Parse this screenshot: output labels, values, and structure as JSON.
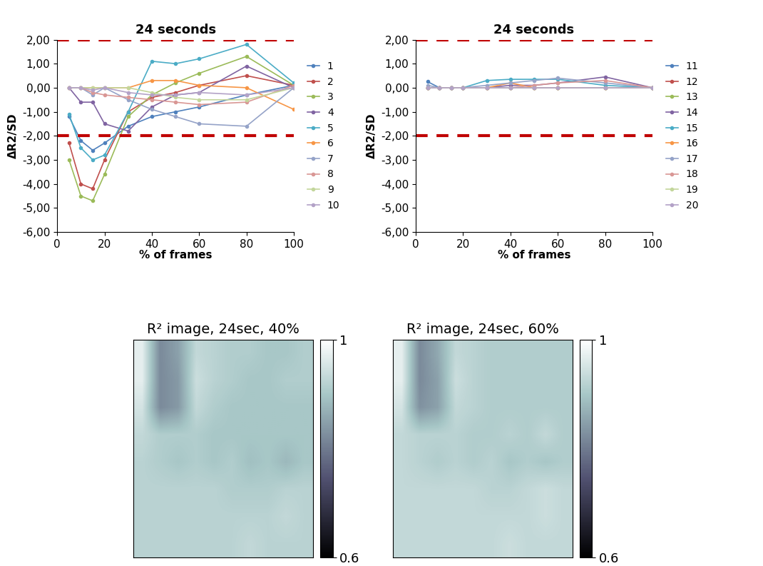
{
  "chart_data": [
    {
      "type": "line",
      "title": "24 seconds",
      "x_label": "% of frames",
      "y_label": "ΔR2/SD",
      "x": [
        5,
        10,
        15,
        20,
        30,
        40,
        50,
        60,
        80,
        100
      ],
      "xlim": [
        0,
        100
      ],
      "xticks": [
        0,
        20,
        40,
        60,
        80,
        100
      ],
      "ylim": [
        -6,
        2
      ],
      "yticks": [
        {
          "value": -6,
          "label": "-6,00"
        },
        {
          "value": -5,
          "label": "-5,00"
        },
        {
          "value": -4,
          "label": "-4,00"
        },
        {
          "value": -3,
          "label": "-3,00"
        },
        {
          "value": -2,
          "label": "-2,00"
        },
        {
          "value": -1,
          "label": "-1,00"
        },
        {
          "value": 0,
          "label": "0,00"
        },
        {
          "value": 1,
          "label": "1,00"
        },
        {
          "value": 2,
          "label": "2,00"
        }
      ],
      "thresholds": [
        2,
        -2
      ],
      "legend": "right",
      "grid": false,
      "marker": "o",
      "series": [
        {
          "name": "1",
          "color": "#4F81BD",
          "values": [
            -1.2,
            -2.2,
            -2.6,
            -2.3,
            -1.6,
            -1.2,
            -1.0,
            -0.8,
            -0.3,
            0.1
          ]
        },
        {
          "name": "2",
          "color": "#C0504D",
          "values": [
            -2.3,
            -4.0,
            -4.2,
            -3.0,
            -1.0,
            -0.4,
            -0.2,
            0.1,
            0.5,
            0.1
          ]
        },
        {
          "name": "3",
          "color": "#9BBB59",
          "values": [
            -3.0,
            -4.5,
            -4.7,
            -3.6,
            -1.2,
            -0.3,
            0.2,
            0.6,
            1.3,
            0.1
          ]
        },
        {
          "name": "4",
          "color": "#8064A2",
          "values": [
            0.0,
            -0.6,
            -0.6,
            -1.5,
            -1.8,
            -0.8,
            -0.3,
            -0.2,
            0.9,
            0.0
          ]
        },
        {
          "name": "5",
          "color": "#4BACC6",
          "values": [
            -1.1,
            -2.5,
            -3.0,
            -2.8,
            -1.0,
            1.1,
            1.0,
            1.2,
            1.8,
            0.2
          ]
        },
        {
          "name": "6",
          "color": "#F79646",
          "values": [
            0.0,
            0.0,
            0.0,
            0.0,
            0.0,
            0.3,
            0.3,
            0.1,
            0.0,
            -0.9
          ]
        },
        {
          "name": "7",
          "color": "#95A3C8",
          "values": [
            0.0,
            0.0,
            -0.3,
            0.0,
            -0.5,
            -0.9,
            -1.2,
            -1.5,
            -1.6,
            0.0
          ]
        },
        {
          "name": "8",
          "color": "#D99795",
          "values": [
            0.0,
            0.0,
            -0.2,
            -0.3,
            -0.4,
            -0.5,
            -0.6,
            -0.7,
            -0.6,
            0.1
          ]
        },
        {
          "name": "9",
          "color": "#C3D69B",
          "values": [
            0.0,
            0.0,
            0.0,
            0.0,
            0.0,
            -0.2,
            -0.4,
            -0.5,
            -0.5,
            0.0
          ]
        },
        {
          "name": "10",
          "color": "#B3A2C7",
          "values": [
            0.0,
            0.0,
            -0.1,
            0.0,
            -0.2,
            -0.3,
            -0.3,
            -0.2,
            -0.3,
            0.0
          ]
        }
      ]
    },
    {
      "type": "line",
      "title": "24 seconds",
      "x_label": "% of frames",
      "y_label": "ΔR2/SD",
      "x": [
        5,
        10,
        15,
        20,
        30,
        40,
        50,
        60,
        80,
        100
      ],
      "xlim": [
        0,
        100
      ],
      "xticks": [
        0,
        20,
        40,
        60,
        80,
        100
      ],
      "ylim": [
        -6,
        2
      ],
      "yticks": [
        {
          "value": -6,
          "label": "-6,00"
        },
        {
          "value": -5,
          "label": "-5,00"
        },
        {
          "value": -4,
          "label": "-4,00"
        },
        {
          "value": -3,
          "label": "-3,00"
        },
        {
          "value": -2,
          "label": "-2,00"
        },
        {
          "value": -1,
          "label": "-1,00"
        },
        {
          "value": 0,
          "label": "0,00"
        },
        {
          "value": 1,
          "label": "1,00"
        },
        {
          "value": 2,
          "label": "2,00"
        }
      ],
      "thresholds": [
        2,
        -2
      ],
      "legend": "right",
      "grid": false,
      "marker": "o",
      "series": [
        {
          "name": "11",
          "color": "#4F81BD",
          "values": [
            0.25,
            0.0,
            0.0,
            0.0,
            0.0,
            0.0,
            0.0,
            0.0,
            0.0,
            0.0
          ]
        },
        {
          "name": "12",
          "color": "#C0504D",
          "values": [
            0.0,
            0.0,
            0.0,
            0.0,
            0.0,
            0.0,
            0.0,
            0.0,
            0.0,
            0.0
          ]
        },
        {
          "name": "13",
          "color": "#9BBB59",
          "values": [
            0.0,
            0.0,
            0.0,
            0.0,
            0.0,
            0.0,
            0.0,
            0.0,
            0.0,
            0.0
          ]
        },
        {
          "name": "14",
          "color": "#8064A2",
          "values": [
            0.0,
            0.0,
            0.0,
            0.0,
            0.0,
            0.1,
            0.1,
            0.2,
            0.45,
            0.0
          ]
        },
        {
          "name": "15",
          "color": "#4BACC6",
          "values": [
            0.0,
            0.0,
            0.0,
            0.0,
            0.3,
            0.35,
            0.35,
            0.35,
            0.1,
            0.0
          ]
        },
        {
          "name": "16",
          "color": "#F79646",
          "values": [
            0.0,
            0.0,
            0.0,
            0.0,
            0.0,
            0.2,
            0.0,
            0.0,
            0.0,
            0.0
          ]
        },
        {
          "name": "17",
          "color": "#95A3C8",
          "values": [
            0.1,
            0.0,
            0.0,
            0.0,
            0.1,
            0.2,
            0.3,
            0.4,
            0.2,
            0.0
          ]
        },
        {
          "name": "18",
          "color": "#D99795",
          "values": [
            0.0,
            0.0,
            0.0,
            0.0,
            0.0,
            0.0,
            0.1,
            0.2,
            0.3,
            0.0
          ]
        },
        {
          "name": "19",
          "color": "#C3D69B",
          "values": [
            0.0,
            0.0,
            0.0,
            0.0,
            0.0,
            0.0,
            0.0,
            0.0,
            0.0,
            0.0
          ]
        },
        {
          "name": "20",
          "color": "#B3A2C7",
          "values": [
            0.0,
            0.0,
            0.0,
            0.0,
            0.0,
            0.0,
            0.0,
            0.0,
            0.0,
            0.0
          ]
        }
      ]
    },
    {
      "type": "heatmap",
      "title": "R² image, 24sec, 40%",
      "tick_labels": false,
      "colorbar_range": [
        0.6,
        1
      ],
      "colorbar_ticks": [
        0.6,
        1
      ],
      "cells": [
        [
          0.97,
          0.82,
          0.85,
          0.93,
          0.92,
          0.91,
          0.91,
          0.9,
          0.9,
          0.91
        ],
        [
          0.97,
          0.82,
          0.84,
          0.94,
          0.92,
          0.91,
          0.9,
          0.9,
          0.91,
          0.91
        ],
        [
          0.95,
          0.82,
          0.84,
          0.93,
          0.91,
          0.9,
          0.9,
          0.9,
          0.9,
          0.9
        ],
        [
          0.93,
          0.91,
          0.91,
          0.91,
          0.9,
          0.9,
          0.9,
          0.9,
          0.9,
          0.9
        ],
        [
          0.92,
          0.91,
          0.9,
          0.91,
          0.9,
          0.91,
          0.89,
          0.9,
          0.88,
          0.9
        ],
        [
          0.92,
          0.92,
          0.92,
          0.92,
          0.92,
          0.91,
          0.91,
          0.91,
          0.92,
          0.92
        ],
        [
          0.92,
          0.92,
          0.92,
          0.92,
          0.92,
          0.92,
          0.92,
          0.92,
          0.93,
          0.92
        ],
        [
          0.92,
          0.92,
          0.92,
          0.92,
          0.92,
          0.92,
          0.93,
          0.92,
          0.92,
          0.92
        ]
      ]
    },
    {
      "type": "heatmap",
      "title": "R² image, 24sec, 60%",
      "tick_labels": false,
      "colorbar_range": [
        0.6,
        1
      ],
      "colorbar_ticks": [
        0.6,
        1
      ],
      "cells": [
        [
          0.97,
          0.82,
          0.86,
          0.93,
          0.92,
          0.91,
          0.91,
          0.91,
          0.91,
          0.91
        ],
        [
          0.97,
          0.82,
          0.85,
          0.94,
          0.92,
          0.91,
          0.91,
          0.91,
          0.91,
          0.91
        ],
        [
          0.95,
          0.83,
          0.85,
          0.93,
          0.92,
          0.91,
          0.91,
          0.91,
          0.91,
          0.91
        ],
        [
          0.93,
          0.92,
          0.92,
          0.92,
          0.91,
          0.91,
          0.92,
          0.91,
          0.93,
          0.91
        ],
        [
          0.93,
          0.92,
          0.91,
          0.92,
          0.91,
          0.92,
          0.9,
          0.91,
          0.9,
          0.91
        ],
        [
          0.93,
          0.93,
          0.93,
          0.93,
          0.93,
          0.92,
          0.92,
          0.93,
          0.94,
          0.93
        ],
        [
          0.93,
          0.93,
          0.93,
          0.93,
          0.93,
          0.93,
          0.93,
          0.93,
          0.94,
          0.93
        ],
        [
          0.93,
          0.93,
          0.93,
          0.93,
          0.93,
          0.93,
          0.94,
          0.93,
          0.93,
          0.93
        ]
      ]
    }
  ]
}
